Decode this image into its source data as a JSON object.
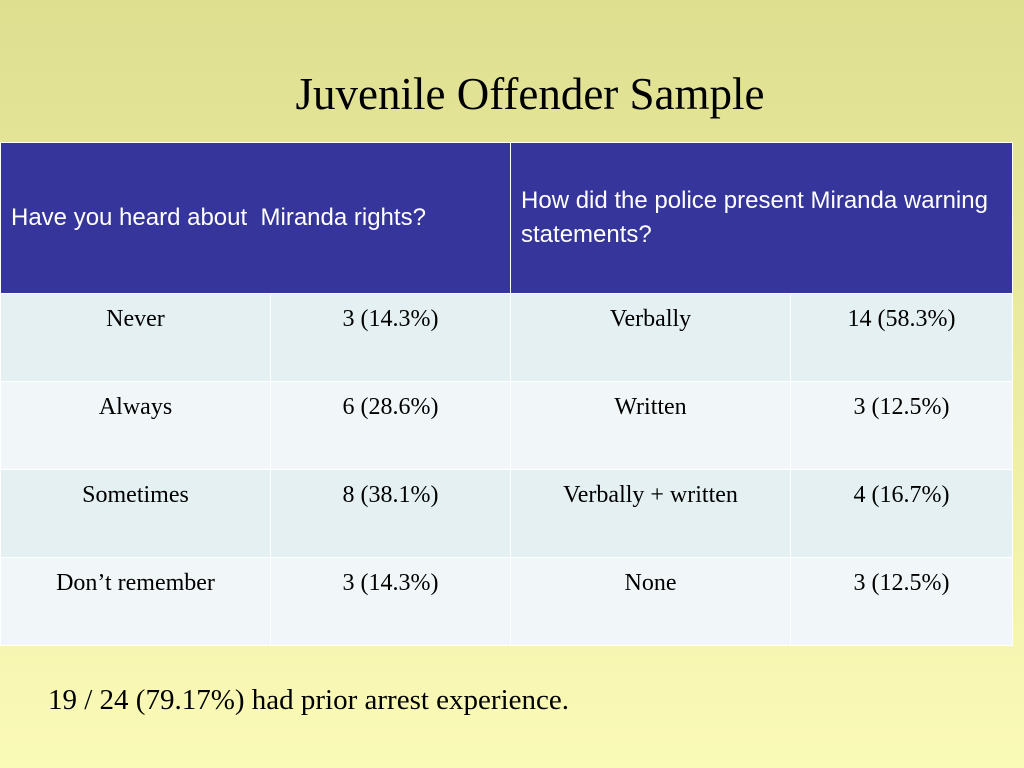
{
  "title": "Juvenile Offender Sample",
  "table": {
    "header": [
      "Have you heard about  Miranda rights?",
      "How did the police present Miranda warning statements?"
    ],
    "rows": [
      [
        "Never",
        "3 (14.3%)",
        "Verbally",
        "14 (58.3%)"
      ],
      [
        "Always",
        "6 (28.6%)",
        "Written",
        "3 (12.5%)"
      ],
      [
        "Sometimes",
        "8 (38.1%)",
        "Verbally + written",
        "4 (16.7%)"
      ],
      [
        "Don’t remember",
        "3 (14.3%)",
        "None",
        "3 (12.5%)"
      ]
    ]
  },
  "footnote": "19 / 24 (79.17%) had prior arrest experience."
}
